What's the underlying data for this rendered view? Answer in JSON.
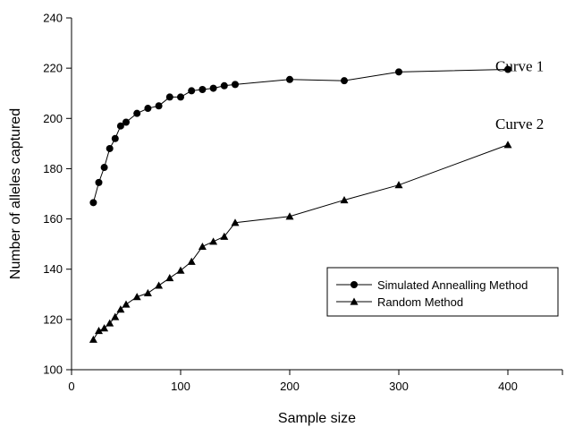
{
  "chart_data": {
    "type": "line",
    "xlabel": "Sample size",
    "ylabel": "Number of alleles captured",
    "xlim": [
      0,
      450
    ],
    "ylim": [
      100,
      240
    ],
    "xticks": [
      0,
      100,
      200,
      300,
      400
    ],
    "yticks": [
      100,
      120,
      140,
      160,
      180,
      200,
      220,
      240
    ],
    "grid": false,
    "legend_position": "lower-right",
    "series": [
      {
        "name": "Simulated Annealling Method",
        "marker": "circle",
        "curve_label": "Curve 1",
        "x": [
          20,
          25,
          30,
          35,
          40,
          45,
          50,
          60,
          70,
          80,
          90,
          100,
          110,
          120,
          130,
          140,
          150,
          200,
          250,
          300,
          400
        ],
        "y": [
          166.5,
          174.5,
          180.5,
          188,
          192,
          197,
          198.5,
          202,
          204,
          205,
          208.5,
          208.5,
          211,
          211.5,
          212,
          213,
          213.5,
          215.5,
          215,
          218.5,
          219.5
        ]
      },
      {
        "name": "Random Method",
        "marker": "triangle",
        "curve_label": "Curve 2",
        "x": [
          20,
          25,
          30,
          35,
          40,
          45,
          50,
          60,
          70,
          80,
          90,
          100,
          110,
          120,
          130,
          140,
          150,
          200,
          250,
          300,
          400
        ],
        "y": [
          112,
          115.5,
          116.5,
          118.5,
          121,
          124,
          126,
          129,
          130.5,
          133.5,
          136.5,
          139.5,
          143,
          149,
          151,
          153,
          158.5,
          161,
          167.5,
          173.5,
          189.5
        ]
      }
    ]
  }
}
